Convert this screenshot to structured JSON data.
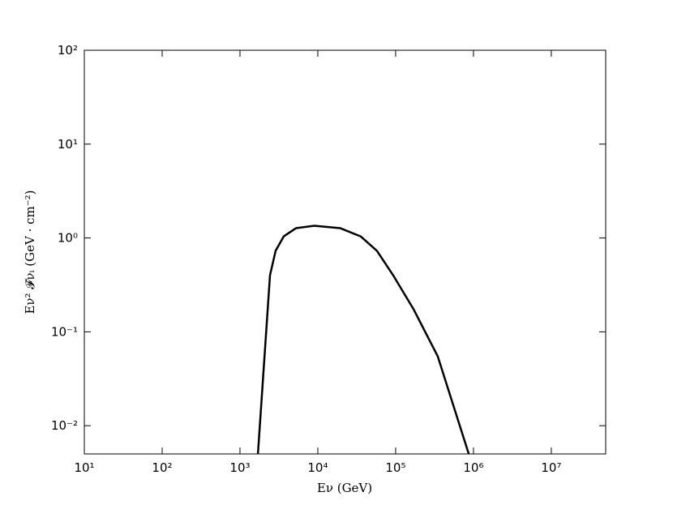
{
  "chart_data": {
    "type": "line",
    "xlabel": "Eν (GeV)",
    "ylabel": "Eν² 𝓕νᵢ (GeV · cm⁻²)",
    "x": [
      1700,
      2430,
      2870,
      3650,
      5230,
      9000,
      19500,
      35500,
      57500,
      93000,
      170000,
      347000,
      870000
    ],
    "series": [
      {
        "color": "#000000",
        "values": [
          0.005,
          0.4,
          0.73,
          1.04,
          1.27,
          1.35,
          1.27,
          1.04,
          0.73,
          0.4,
          0.174,
          0.055,
          0.005
        ]
      }
    ],
    "xscale": "log",
    "yscale": "log",
    "xlim": [
      10,
      50000000
    ],
    "ylim": [
      0.005,
      100
    ],
    "xticks": [
      {
        "value": 10,
        "label": "10¹"
      },
      {
        "value": 100,
        "label": "10²"
      },
      {
        "value": 1000,
        "label": "10³"
      },
      {
        "value": 10000,
        "label": "10⁴"
      },
      {
        "value": 100000,
        "label": "10⁵"
      },
      {
        "value": 1000000,
        "label": "10⁶"
      },
      {
        "value": 10000000,
        "label": "10⁷"
      }
    ],
    "yticks": [
      {
        "value": 0.01,
        "label": "10⁻²"
      },
      {
        "value": 0.1,
        "label": "10⁻¹"
      },
      {
        "value": 1,
        "label": "10⁰"
      },
      {
        "value": 10,
        "label": "10¹"
      },
      {
        "value": 100,
        "label": "10²"
      }
    ],
    "grid": false
  }
}
